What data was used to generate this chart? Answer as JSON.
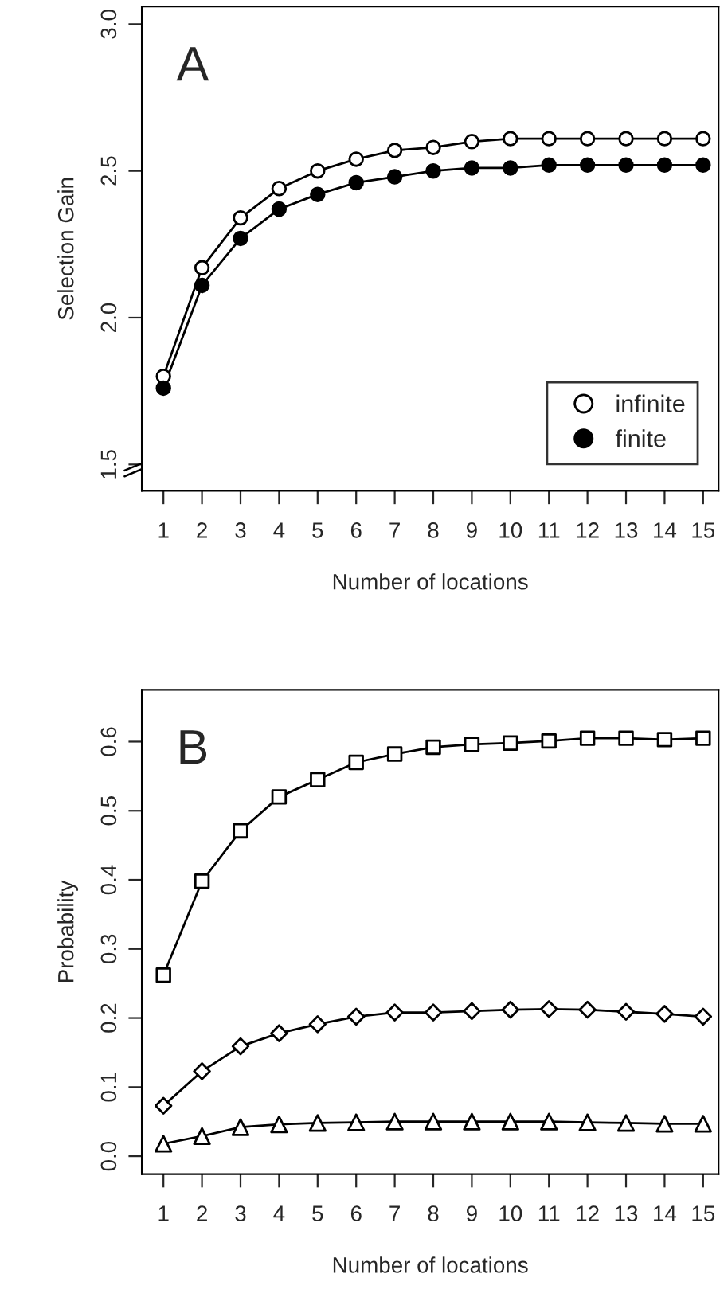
{
  "chart_data": [
    {
      "type": "line",
      "xlabel": "Number of locations",
      "ylabel": "Selection Gain",
      "annotations": [
        "A"
      ],
      "x": [
        1,
        2,
        3,
        4,
        5,
        6,
        7,
        8,
        9,
        10,
        11,
        12,
        13,
        14,
        15
      ],
      "series": [
        {
          "name": "infinite",
          "color": "#000000",
          "marker": "circle",
          "colors": [
            "#ffffff",
            "#ffffff",
            "#ffffff",
            "#ffffff",
            "#ffffff",
            "#ffffff",
            "#ffffff",
            "#ffffff",
            "#ffffff",
            "#ffffff",
            "#ffffff",
            "#ffffff",
            "#ffffff",
            "#ffffff",
            "#ffffff"
          ],
          "values": [
            1.8,
            2.17,
            2.34,
            2.44,
            2.5,
            2.54,
            2.57,
            2.58,
            2.6,
            2.61,
            2.61,
            2.61,
            2.61,
            2.61,
            2.61
          ]
        },
        {
          "name": "finite",
          "color": "#000000",
          "marker": "circle",
          "values": [
            1.76,
            2.11,
            2.27,
            2.37,
            2.42,
            2.46,
            2.48,
            2.5,
            2.51,
            2.51,
            2.52,
            2.52,
            2.52,
            2.52,
            2.52
          ]
        }
      ],
      "xlim": [
        0.44,
        15.4
      ],
      "xticks": [
        1,
        2,
        3,
        4,
        5,
        6,
        7,
        8,
        9,
        10,
        11,
        12,
        13,
        14,
        15
      ],
      "ylim": [
        1.41,
        3.06
      ],
      "yticks": [
        1.5,
        {
          "value": 2,
          "label": "2.0"
        },
        2.5,
        {
          "value": 3,
          "label": "3.0"
        }
      ],
      "grid": false,
      "legend": "bottom right",
      "line_style": "solid"
    },
    {
      "type": "line",
      "xlabel": "Number of locations",
      "ylabel": "Probability",
      "annotations": [
        "B"
      ],
      "x": [
        1,
        2,
        3,
        4,
        5,
        6,
        7,
        8,
        9,
        10,
        11,
        12,
        13,
        14,
        15
      ],
      "series": [
        {
          "color": "#000000",
          "marker": "square",
          "colors": [
            "#ffffff",
            "#ffffff",
            "#ffffff",
            "#ffffff",
            "#ffffff",
            "#ffffff",
            "#ffffff",
            "#ffffff",
            "#ffffff",
            "#ffffff",
            "#ffffff",
            "#ffffff",
            "#ffffff",
            "#ffffff",
            "#ffffff"
          ],
          "values": [
            0.262,
            0.398,
            0.471,
            0.52,
            0.545,
            0.57,
            0.582,
            0.592,
            0.596,
            0.598,
            0.601,
            0.605,
            0.605,
            0.603,
            0.605
          ]
        },
        {
          "color": "#000000",
          "marker": "diamond",
          "colors": [
            "#ffffff",
            "#ffffff",
            "#ffffff",
            "#ffffff",
            "#ffffff",
            "#ffffff",
            "#ffffff",
            "#ffffff",
            "#ffffff",
            "#ffffff",
            "#ffffff",
            "#ffffff",
            "#ffffff",
            "#ffffff",
            "#ffffff"
          ],
          "values": [
            0.073,
            0.123,
            0.159,
            0.178,
            0.191,
            0.202,
            0.208,
            0.208,
            0.21,
            0.212,
            0.213,
            0.212,
            0.209,
            0.206,
            0.202
          ]
        },
        {
          "color": "#000000",
          "marker": "triangle",
          "colors": [
            "#ffffff",
            "#ffffff",
            "#ffffff",
            "#ffffff",
            "#ffffff",
            "#ffffff",
            "#ffffff",
            "#ffffff",
            "#ffffff",
            "#ffffff",
            "#ffffff",
            "#ffffff",
            "#ffffff",
            "#ffffff",
            "#ffffff"
          ],
          "values": [
            0.018,
            0.029,
            0.042,
            0.046,
            0.048,
            0.049,
            0.05,
            0.05,
            0.05,
            0.05,
            0.05,
            0.049,
            0.048,
            0.047,
            0.047
          ]
        }
      ],
      "xlim": [
        0.44,
        15.4
      ],
      "xticks": [
        1,
        2,
        3,
        4,
        5,
        6,
        7,
        8,
        9,
        10,
        11,
        12,
        13,
        14,
        15
      ],
      "ylim": [
        -0.026,
        0.675
      ],
      "yticks": [
        {
          "value": 0,
          "label": "0.0"
        },
        0.1,
        0.2,
        0.3,
        0.4,
        0.5,
        0.6
      ],
      "grid": false,
      "legend": false,
      "line_style": "solid"
    }
  ]
}
